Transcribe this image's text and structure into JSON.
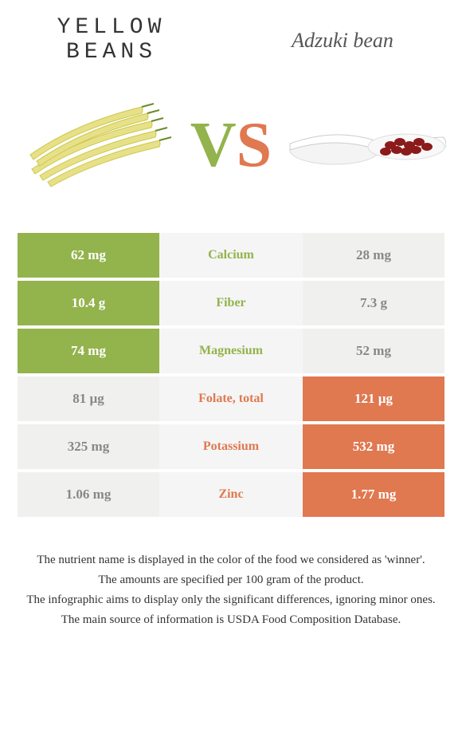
{
  "header": {
    "left_title_line1": "YELLOW",
    "left_title_line2": "BEANS",
    "right_title": "Adzuki bean"
  },
  "vs": {
    "v": "V",
    "s": "S"
  },
  "colors": {
    "green": "#93b34c",
    "orange": "#e07850",
    "neutral_bg": "#f0f0ee",
    "neutral_text": "#888888",
    "mid_bg": "#f5f5f5",
    "page_bg": "#ffffff"
  },
  "table": {
    "rows": [
      {
        "left": "62 mg",
        "name": "Calcium",
        "right": "28 mg",
        "winner": "left"
      },
      {
        "left": "10.4 g",
        "name": "Fiber",
        "right": "7.3 g",
        "winner": "left"
      },
      {
        "left": "74 mg",
        "name": "Magnesium",
        "right": "52 mg",
        "winner": "left"
      },
      {
        "left": "81 µg",
        "name": "Folate, total",
        "right": "121 µg",
        "winner": "right"
      },
      {
        "left": "325 mg",
        "name": "Potassium",
        "right": "532 mg",
        "winner": "right"
      },
      {
        "left": "1.06 mg",
        "name": "Zinc",
        "right": "1.77 mg",
        "winner": "right"
      }
    ]
  },
  "notes": {
    "line1": "The nutrient name is displayed in the color of the food we considered as 'winner'.",
    "line2": "The amounts are specified per 100 gram of the product.",
    "line3": "The infographic aims to display only the significant differences, ignoring minor ones.",
    "line4": "The main source of information is USDA Food Composition Database."
  },
  "illustrations": {
    "left": "yellow-beans",
    "right": "adzuki-beans-on-spoon"
  }
}
